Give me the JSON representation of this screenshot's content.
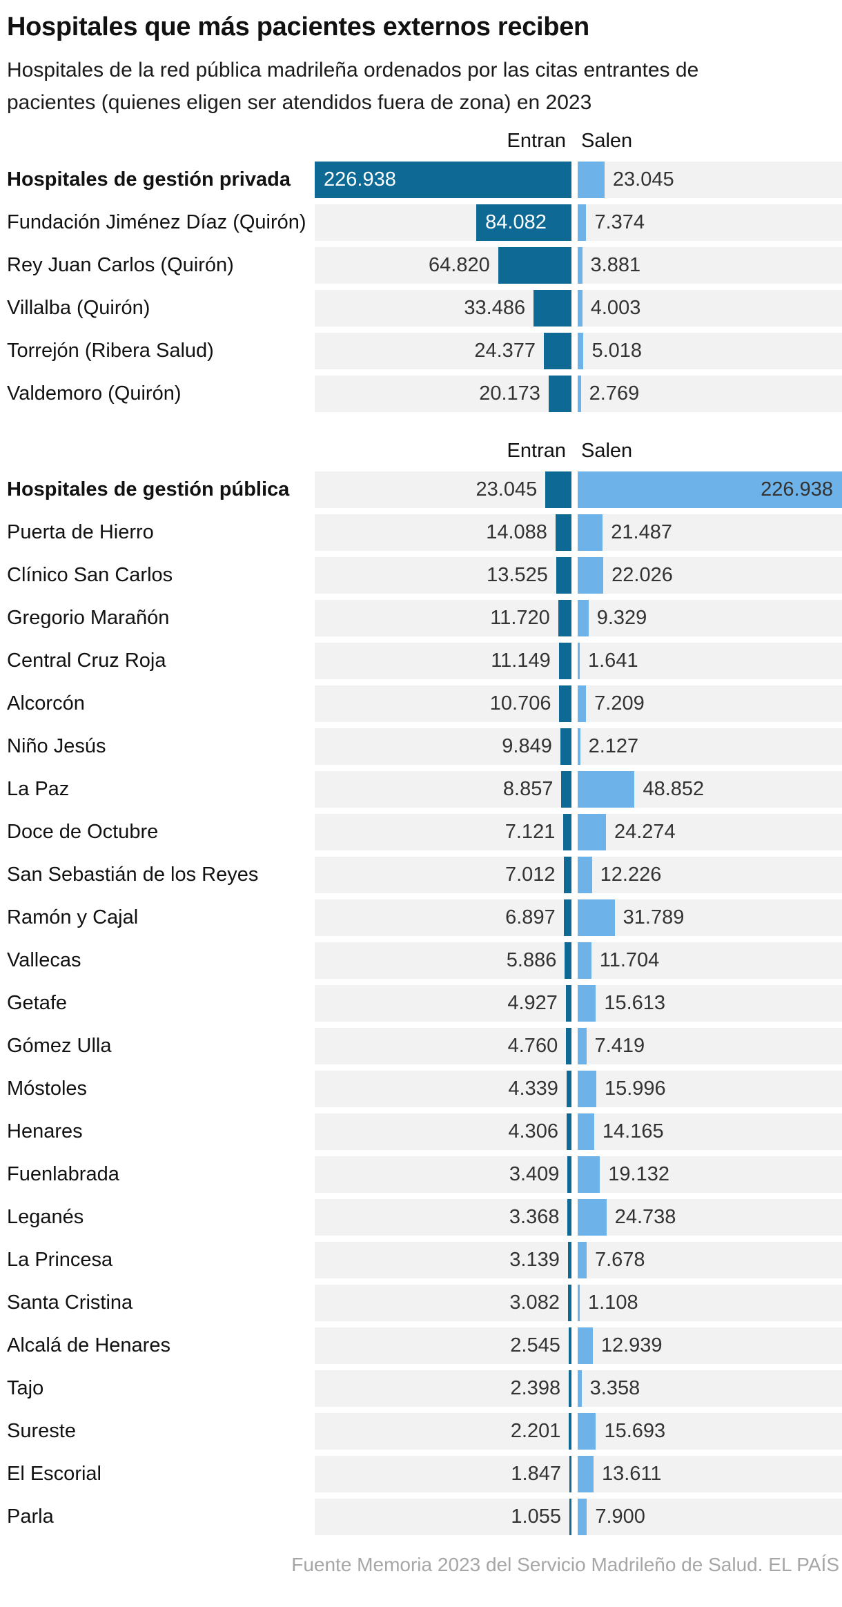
{
  "title": "Hospitales que más pacientes externos reciben",
  "subtitle": "Hospitales de la red pública madrileña ordenados por las citas entrantes de pacientes (quienes eligen ser atendidos fuera de zona) en 2023",
  "source": "Fuente Memoria 2023 del Servicio Madrileño de Salud. EL PAÍS",
  "colors": {
    "entran_bar": "#0e6a94",
    "salen_bar": "#6db2e9",
    "row_bg": "#f2f2f2",
    "value_text": "#333333",
    "value_text_inverse": "#ffffff",
    "source_text": "#a6a6a6"
  },
  "chart_data": {
    "type": "bar",
    "orientation": "horizontal",
    "title": "Hospitales que más pacientes externos reciben",
    "subtitle": "Hospitales de la red pública madrileña ordenados por las citas entrantes de pacientes (quienes eligen ser atendidos fuera de zona) en 2023",
    "max_value": 226938,
    "column_headers": {
      "entran": "Entran",
      "salen": "Salen"
    },
    "sections": [
      {
        "rows": [
          {
            "label": "Hospitales de gestión privada",
            "bold": true,
            "entran": 226938,
            "salen": 23045,
            "entran_text": "226.938",
            "salen_text": "23.045"
          },
          {
            "label": "Fundación Jiménez Díaz (Quirón)",
            "entran": 84082,
            "salen": 7374,
            "entran_text": "84.082",
            "salen_text": "7.374"
          },
          {
            "label": "Rey Juan Carlos (Quirón)",
            "entran": 64820,
            "salen": 3881,
            "entran_text": "64.820",
            "salen_text": "3.881"
          },
          {
            "label": "Villalba (Quirón)",
            "entran": 33486,
            "salen": 4003,
            "entran_text": "33.486",
            "salen_text": "4.003"
          },
          {
            "label": "Torrejón (Ribera Salud)",
            "entran": 24377,
            "salen": 5018,
            "entran_text": "24.377",
            "salen_text": "5.018"
          },
          {
            "label": "Valdemoro (Quirón)",
            "entran": 20173,
            "salen": 2769,
            "entran_text": "20.173",
            "salen_text": "2.769"
          }
        ]
      },
      {
        "rows": [
          {
            "label": "Hospitales de gestión pública",
            "bold": true,
            "entran": 23045,
            "salen": 226938,
            "entran_text": "23.045",
            "salen_text": "226.938"
          },
          {
            "label": "Puerta de Hierro",
            "entran": 14088,
            "salen": 21487,
            "entran_text": "14.088",
            "salen_text": "21.487"
          },
          {
            "label": "Clínico San Carlos",
            "entran": 13525,
            "salen": 22026,
            "entran_text": "13.525",
            "salen_text": "22.026"
          },
          {
            "label": "Gregorio Marañón",
            "entran": 11720,
            "salen": 9329,
            "entran_text": "11.720",
            "salen_text": "9.329"
          },
          {
            "label": "Central Cruz Roja",
            "entran": 11149,
            "salen": 1641,
            "entran_text": "11.149",
            "salen_text": "1.641"
          },
          {
            "label": "Alcorcón",
            "entran": 10706,
            "salen": 7209,
            "entran_text": "10.706",
            "salen_text": "7.209"
          },
          {
            "label": "Niño Jesús",
            "entran": 9849,
            "salen": 2127,
            "entran_text": "9.849",
            "salen_text": "2.127"
          },
          {
            "label": "La Paz",
            "entran": 8857,
            "salen": 48852,
            "entran_text": "8.857",
            "salen_text": "48.852"
          },
          {
            "label": "Doce de Octubre",
            "entran": 7121,
            "salen": 24274,
            "entran_text": "7.121",
            "salen_text": "24.274"
          },
          {
            "label": "San Sebastián de los Reyes",
            "entran": 7012,
            "salen": 12226,
            "entran_text": "7.012",
            "salen_text": "12.226"
          },
          {
            "label": "Ramón y Cajal",
            "entran": 6897,
            "salen": 31789,
            "entran_text": "6.897",
            "salen_text": "31.789"
          },
          {
            "label": "Vallecas",
            "entran": 5886,
            "salen": 11704,
            "entran_text": "5.886",
            "salen_text": "11.704"
          },
          {
            "label": "Getafe",
            "entran": 4927,
            "salen": 15613,
            "entran_text": "4.927",
            "salen_text": "15.613"
          },
          {
            "label": "Gómez Ulla",
            "entran": 4760,
            "salen": 7419,
            "entran_text": "4.760",
            "salen_text": "7.419"
          },
          {
            "label": "Móstoles",
            "entran": 4339,
            "salen": 15996,
            "entran_text": "4.339",
            "salen_text": "15.996"
          },
          {
            "label": "Henares",
            "entran": 4306,
            "salen": 14165,
            "entran_text": "4.306",
            "salen_text": "14.165"
          },
          {
            "label": "Fuenlabrada",
            "entran": 3409,
            "salen": 19132,
            "entran_text": "3.409",
            "salen_text": "19.132"
          },
          {
            "label": "Leganés",
            "entran": 3368,
            "salen": 24738,
            "entran_text": "3.368",
            "salen_text": "24.738"
          },
          {
            "label": "La Princesa",
            "entran": 3139,
            "salen": 7678,
            "entran_text": "3.139",
            "salen_text": "7.678"
          },
          {
            "label": "Santa Cristina",
            "entran": 3082,
            "salen": 1108,
            "entran_text": "3.082",
            "salen_text": "1.108"
          },
          {
            "label": "Alcalá de Henares",
            "entran": 2545,
            "salen": 12939,
            "entran_text": "2.545",
            "salen_text": "12.939"
          },
          {
            "label": "Tajo",
            "entran": 2398,
            "salen": 3358,
            "entran_text": "2.398",
            "salen_text": "3.358"
          },
          {
            "label": "Sureste",
            "entran": 2201,
            "salen": 15693,
            "entran_text": "2.201",
            "salen_text": "15.693"
          },
          {
            "label": "El Escorial",
            "entran": 1847,
            "salen": 13611,
            "entran_text": "1.847",
            "salen_text": "13.611"
          },
          {
            "label": "Parla",
            "entran": 1055,
            "salen": 7900,
            "entran_text": "1.055",
            "salen_text": "7.900"
          }
        ]
      }
    ]
  }
}
